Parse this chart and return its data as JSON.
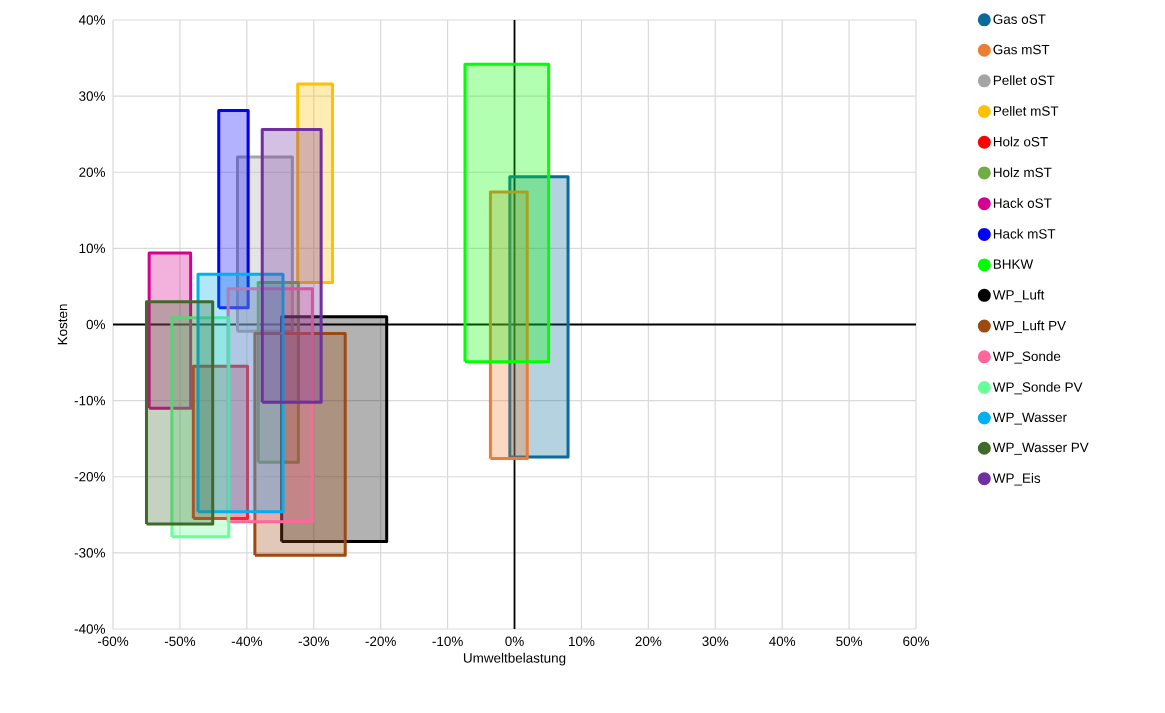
{
  "chart_data": {
    "type": "area",
    "xlabel": "Umweltbelastung",
    "ylabel": "Kosten",
    "xlim": [
      -60,
      60
    ],
    "ylim": [
      -40,
      40
    ],
    "xticks": [
      {
        "value": -60,
        "label": "-60%"
      },
      {
        "value": -50,
        "label": "-50%"
      },
      {
        "value": -40,
        "label": "-40%"
      },
      {
        "value": -30,
        "label": "-30%"
      },
      {
        "value": -20,
        "label": "-20%"
      },
      {
        "value": -10,
        "label": "-10%"
      },
      {
        "value": 0,
        "label": "0%"
      },
      {
        "value": 10,
        "label": "10%"
      },
      {
        "value": 20,
        "label": "20%"
      },
      {
        "value": 30,
        "label": "30%"
      },
      {
        "value": 40,
        "label": "40%"
      },
      {
        "value": 50,
        "label": "50%"
      },
      {
        "value": 60,
        "label": "60%"
      }
    ],
    "yticks": [
      {
        "value": -40,
        "label": "-40%"
      },
      {
        "value": -30,
        "label": "-30%"
      },
      {
        "value": -20,
        "label": "-20%"
      },
      {
        "value": -10,
        "label": "-10%"
      },
      {
        "value": 0,
        "label": "0%"
      },
      {
        "value": 10,
        "label": "10%"
      },
      {
        "value": 20,
        "label": "20%"
      },
      {
        "value": 30,
        "label": "30%"
      },
      {
        "value": 40,
        "label": "40%"
      }
    ],
    "grid": true,
    "legend": "right",
    "series": [
      {
        "name": "Gas oST",
        "color": "#0b6a9a",
        "x": [
          -0.7,
          8.0,
          8.0,
          -0.7,
          -0.7
        ],
        "values": [
          -17.4,
          -17.4,
          19.4,
          19.4,
          -17.4
        ]
      },
      {
        "name": "Gas mST",
        "color": "#ed7d31",
        "x": [
          -3.6,
          1.9,
          1.9,
          -3.6,
          -3.6
        ],
        "values": [
          -17.6,
          -17.6,
          17.4,
          17.4,
          -17.6
        ]
      },
      {
        "name": "Pellet oST",
        "color": "#a5a5a5",
        "x": [
          -41.4,
          -33.2,
          -33.2,
          -41.4,
          -41.4
        ],
        "values": [
          -0.9,
          -0.9,
          22.0,
          22.0,
          -0.9
        ]
      },
      {
        "name": "Pellet mST",
        "color": "#ffc000",
        "x": [
          -32.4,
          -27.2,
          -27.2,
          -32.4,
          -32.4
        ],
        "values": [
          5.5,
          5.5,
          31.6,
          31.6,
          5.5
        ]
      },
      {
        "name": "Holz oST",
        "color": "#ff0000",
        "x": [
          -48.0,
          -39.9,
          -39.9,
          -48.0,
          -48.0
        ],
        "values": [
          -25.5,
          -25.5,
          -5.5,
          -5.5,
          -25.5
        ]
      },
      {
        "name": "Holz mST",
        "color": "#70ad47",
        "x": [
          -38.3,
          -32.3,
          -32.3,
          -38.3,
          -38.3
        ],
        "values": [
          -18.1,
          -18.1,
          5.5,
          5.5,
          -18.1
        ]
      },
      {
        "name": "Hack oST",
        "color": "#d5008f",
        "x": [
          -54.6,
          -48.4,
          -48.4,
          -54.6,
          -54.6
        ],
        "values": [
          -11.0,
          -11.0,
          9.4,
          9.4,
          -11.0
        ]
      },
      {
        "name": "Hack mST",
        "color": "#0000ff",
        "x": [
          -44.2,
          -39.8,
          -39.8,
          -44.2,
          -44.2
        ],
        "values": [
          2.2,
          2.2,
          28.1,
          28.1,
          2.2
        ]
      },
      {
        "name": "BHKW",
        "color": "#00ff00",
        "x": [
          -7.4,
          5.1,
          5.1,
          -7.4,
          -7.4
        ],
        "values": [
          -4.9,
          -4.9,
          34.2,
          34.2,
          -4.9
        ]
      },
      {
        "name": "WP_Luft",
        "color": "#000000",
        "x": [
          -34.8,
          -19.1,
          -19.1,
          -34.8,
          -34.8
        ],
        "values": [
          -28.5,
          -28.5,
          1.0,
          1.0,
          -28.5
        ]
      },
      {
        "name": "WP_Luft PV",
        "color": "#9c4a0f",
        "x": [
          -38.8,
          -25.3,
          -25.3,
          -38.8,
          -38.8
        ],
        "values": [
          -30.3,
          -30.3,
          -1.2,
          -1.2,
          -30.3
        ]
      },
      {
        "name": "WP_Sonde",
        "color": "#ff6699",
        "x": [
          -42.8,
          -30.2,
          -30.2,
          -42.8,
          -42.8
        ],
        "values": [
          -25.9,
          -25.9,
          4.7,
          4.7,
          -25.9
        ]
      },
      {
        "name": "WP_Sonde PV",
        "color": "#66ff99",
        "x": [
          -51.2,
          -42.7,
          -42.7,
          -51.2,
          -51.2
        ],
        "values": [
          -27.9,
          -27.9,
          0.9,
          0.9,
          -27.9
        ]
      },
      {
        "name": "WP_Wasser",
        "color": "#00b0f0",
        "x": [
          -47.3,
          -34.6,
          -34.6,
          -47.3,
          -47.3
        ],
        "values": [
          -24.6,
          -24.6,
          6.6,
          6.6,
          -24.6
        ]
      },
      {
        "name": "WP_Wasser PV",
        "color": "#3f6a2a",
        "x": [
          -55.0,
          -45.1,
          -45.1,
          -55.0,
          -55.0
        ],
        "values": [
          -26.2,
          -26.2,
          3.0,
          3.0,
          -26.2
        ]
      },
      {
        "name": "WP_Eis",
        "color": "#7030a0",
        "x": [
          -37.7,
          -28.9,
          -28.9,
          -37.7,
          -37.7
        ],
        "values": [
          -10.2,
          -10.2,
          25.6,
          25.6,
          -10.2
        ]
      }
    ]
  }
}
